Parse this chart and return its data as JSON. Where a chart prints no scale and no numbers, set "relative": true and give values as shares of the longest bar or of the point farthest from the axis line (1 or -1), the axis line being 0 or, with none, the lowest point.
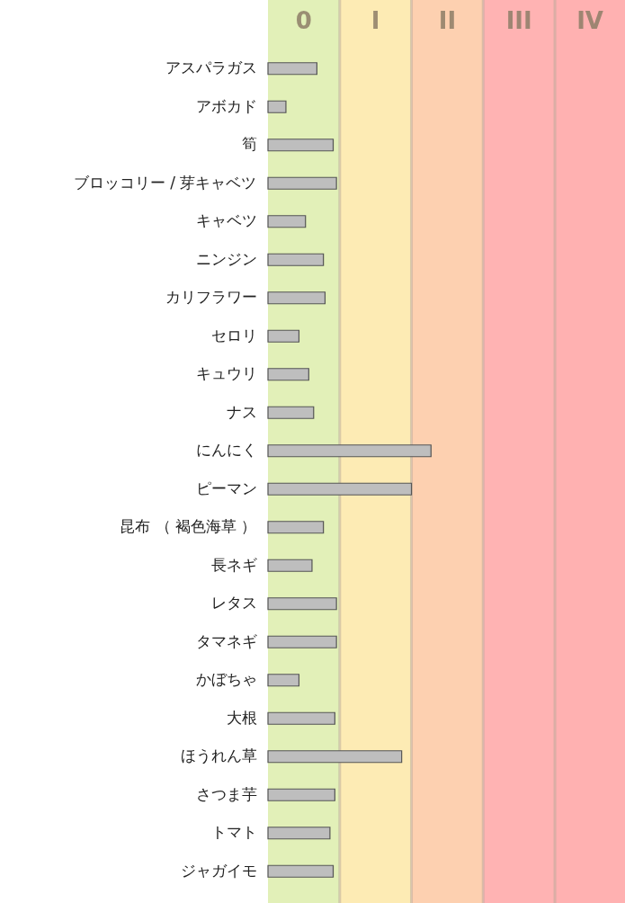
{
  "chart_data": {
    "type": "bar",
    "orientation": "horizontal",
    "relative": true,
    "categories": [
      "アスパラガス",
      "アボカド",
      "筍",
      "ブロッコリー / 芽キャベツ",
      "キャベツ",
      "ニンジン",
      "カリフラワー",
      "セロリ",
      "キュウリ",
      "ナス",
      "にんにく",
      "ピーマン",
      "昆布 （ 褐色海草 ）",
      "長ネギ",
      "レタス",
      "タマネギ",
      "かぼちゃ",
      "大根",
      "ほうれん草",
      "さつま芋",
      "トマト",
      "ジャガイモ"
    ],
    "values": [
      0.3,
      0.11,
      0.4,
      0.42,
      0.23,
      0.34,
      0.35,
      0.19,
      0.25,
      0.28,
      1,
      0.88,
      0.34,
      0.27,
      0.42,
      0.42,
      0.19,
      0.41,
      0.82,
      0.41,
      0.38,
      0.4
    ],
    "color": "#bebebe",
    "bands": [
      {
        "axis": "x",
        "from": 0,
        "to": 0.44,
        "label": "0",
        "color": "#e2f0b8"
      },
      {
        "axis": "x",
        "from": 0.44,
        "to": 0.88,
        "label": "I",
        "color": "#fdebb4"
      },
      {
        "axis": "x",
        "from": 0.88,
        "to": 1.32,
        "label": "II",
        "color": "#fdd0b0"
      },
      {
        "axis": "x",
        "from": 1.32,
        "to": 1.76,
        "label": "III",
        "color": "#ffb3b3"
      },
      {
        "axis": "x",
        "from": 1.76,
        "to": 2.19,
        "label": "IV",
        "color": "#ffb1b1"
      }
    ],
    "ref_lines": [
      {
        "axis": "x",
        "value": 0.44,
        "color": "#b8a898"
      },
      {
        "axis": "x",
        "value": 0.88,
        "color": "#b8a898"
      },
      {
        "axis": "x",
        "value": 1.32,
        "color": "#b8a898"
      },
      {
        "axis": "x",
        "value": 1.76,
        "color": "#b8a898"
      }
    ]
  }
}
